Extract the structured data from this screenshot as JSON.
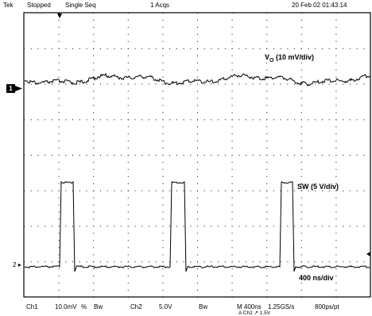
{
  "header": {
    "brand": "Tek",
    "state": "Stopped",
    "mode": "Single Seq",
    "acqs": "1 Acqs",
    "datetime": "20 Feb 02 01:43:14"
  },
  "traces": [
    {
      "channel_marker": "1",
      "label": "V",
      "label_sub": "O",
      "label_rest": " (10 mV/div)"
    },
    {
      "channel_marker": "2",
      "label": "SW (5 V/div)"
    }
  ],
  "timebase_label": "400 ns/div",
  "footer": {
    "ch1_label": "Ch1",
    "ch1_scale": "10.0mV",
    "ch1_ohm": "%",
    "ch1_bw": "Bw",
    "ch2_label": "Ch2",
    "ch2_scale": "5.0V",
    "ch2_bw": "Bw",
    "timebase": "M 400ns",
    "sample_rate": "1.25GS/s",
    "resolution": "800ps/pt",
    "trigger": "A Ch2 ↗ 1.5V"
  },
  "colors": {
    "trace": "#000000",
    "grid": "#000000",
    "background": "#ffffff"
  },
  "icons": {
    "trigger_position": "trigger-position-icon",
    "trigger_level": "trigger-level-icon"
  }
}
